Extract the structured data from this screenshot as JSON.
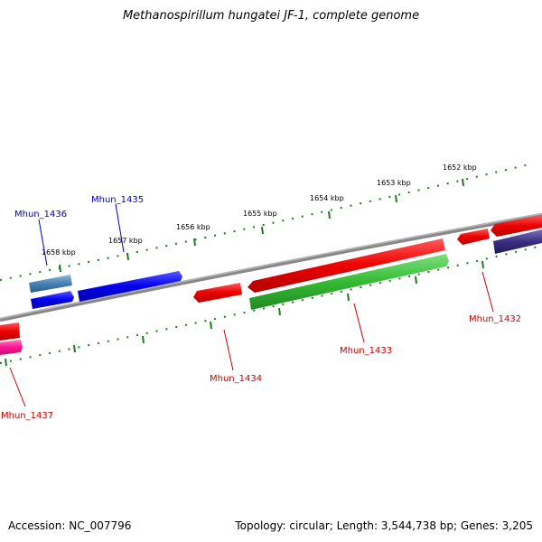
{
  "title": "Methanospirillum hungatei JF-1, complete genome",
  "footer": {
    "accession": "Accession: NC_007796",
    "topology": "Topology: circular; Length: 3,544,738 bp; Genes: 3,205"
  },
  "ruler_ticks": [
    {
      "label": "1658 kbp"
    },
    {
      "label": "1657 kbp"
    },
    {
      "label": "1656 kbp"
    },
    {
      "label": "1655 kbp"
    },
    {
      "label": "1654 kbp"
    },
    {
      "label": "1653 kbp"
    },
    {
      "label": "1652 kbp"
    }
  ],
  "gene_labels": [
    {
      "text": "Mhun_1436",
      "color": "#0000cc"
    },
    {
      "text": "Mhun_1435",
      "color": "#0000cc"
    },
    {
      "text": "Mhun_1437",
      "color": "#cc0000"
    },
    {
      "text": "Mhun_1434",
      "color": "#cc0000"
    },
    {
      "text": "Mhun_1433",
      "color": "#cc0000"
    },
    {
      "text": "Mhun_1432",
      "color": "#cc0000"
    }
  ],
  "colors": {
    "backbone": "#888888",
    "tick": "#1f7a1f",
    "gene_red": "#ee0000",
    "gene_blue": "#0000ee",
    "gene_steel": "#4682b4",
    "gene_green": "#33bb33",
    "gene_pink": "#ff1493",
    "gene_purple": "#3a2f80"
  }
}
